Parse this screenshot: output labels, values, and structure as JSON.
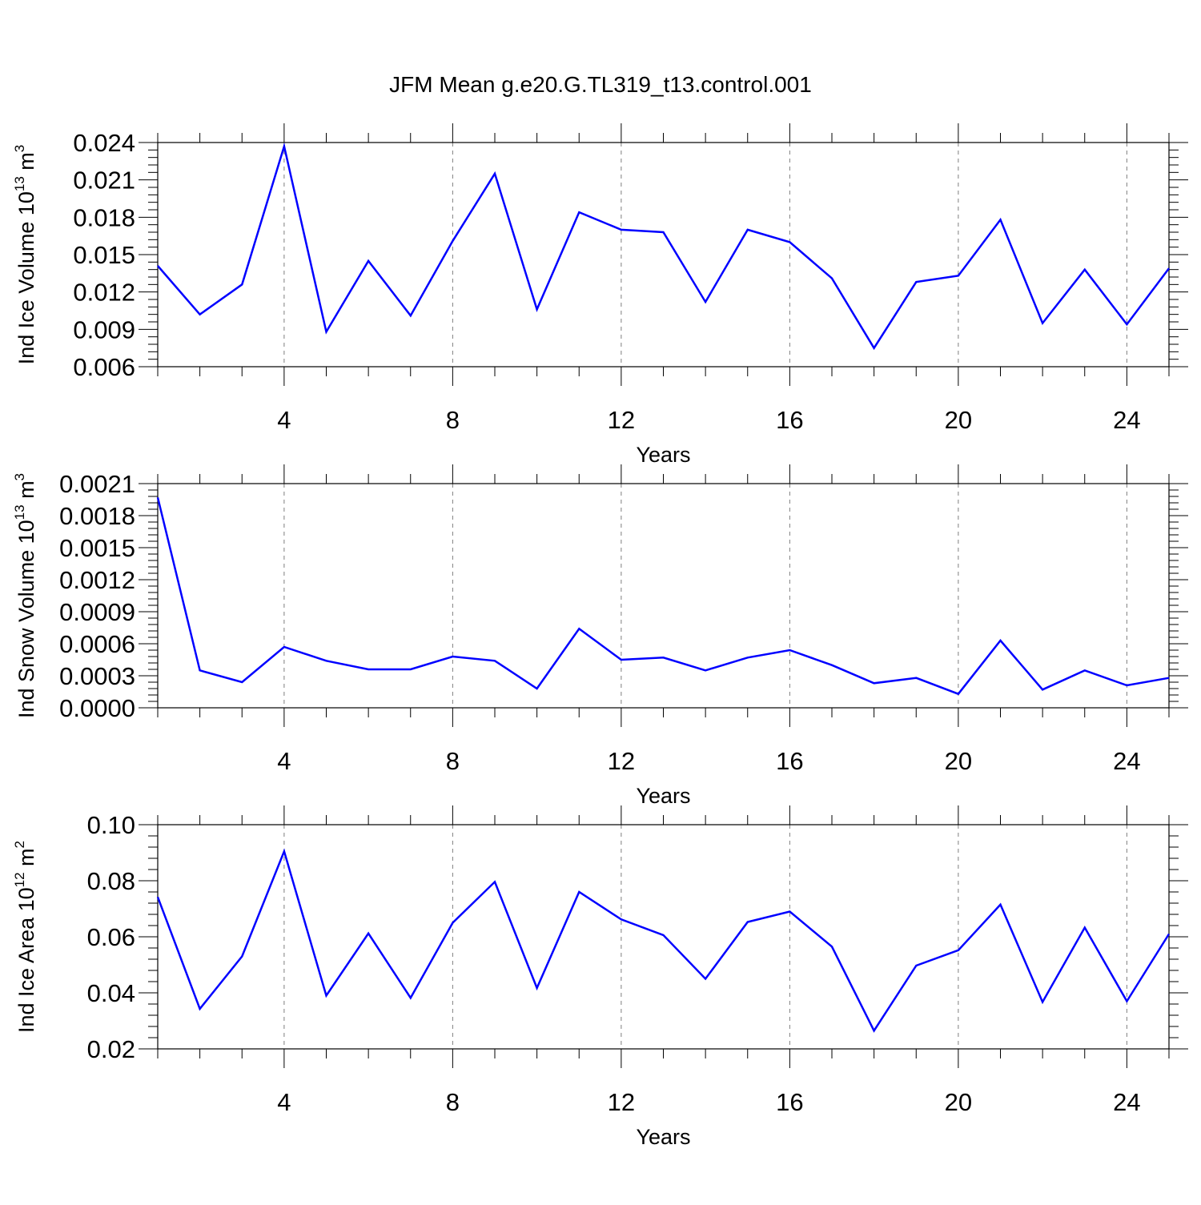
{
  "figure_title": "JFM Mean g.e20.G.TL319_t13.control.001",
  "colors": {
    "line": "#0000ff",
    "axis": "#000000",
    "grid": "#7f7f7f"
  },
  "chart_data": [
    {
      "type": "line",
      "title": "JFM Mean g.e20.G.TL319_t13.control.001",
      "xlabel": "Years",
      "ylabel_text": "Ind Ice Volume 10",
      "ylabel_exponent": "13",
      "ylabel_unit": "m",
      "ylabel_unit_exponent": "3",
      "xlim": [
        1,
        25
      ],
      "ylim": [
        0.006,
        0.024
      ],
      "xticks": [
        4,
        8,
        12,
        16,
        20,
        24
      ],
      "yticks": [
        "0.006",
        "0.009",
        "0.012",
        "0.015",
        "0.018",
        "0.021",
        "0.024"
      ],
      "grid": "vertical dashed at major x ticks",
      "series": [
        {
          "x": [
            1,
            2,
            3,
            4,
            5,
            6,
            7,
            8,
            9,
            10,
            11,
            12,
            13,
            14,
            15,
            16,
            17,
            18,
            19,
            20,
            21,
            22,
            23,
            24,
            25
          ],
          "values": [
            0.0141,
            0.0102,
            0.0126,
            0.0237,
            0.0088,
            0.0145,
            0.0101,
            0.0161,
            0.0215,
            0.0106,
            0.0184,
            0.017,
            0.0168,
            0.0112,
            0.017,
            0.016,
            0.0131,
            0.0075,
            0.0128,
            0.0133,
            0.0178,
            0.0095,
            0.0138,
            0.0094,
            0.0139
          ]
        }
      ]
    },
    {
      "type": "line",
      "xlabel": "Years",
      "ylabel_text": "Ind Snow Volume 10",
      "ylabel_exponent": "13",
      "ylabel_unit": "m",
      "ylabel_unit_exponent": "3",
      "xlim": [
        1,
        25
      ],
      "ylim": [
        0.0,
        0.0021
      ],
      "xticks": [
        4,
        8,
        12,
        16,
        20,
        24
      ],
      "yticks": [
        "0.0000",
        "0.0003",
        "0.0006",
        "0.0009",
        "0.0012",
        "0.0015",
        "0.0018",
        "0.0021"
      ],
      "grid": "vertical dashed at major x ticks",
      "series": [
        {
          "x": [
            1,
            2,
            3,
            4,
            5,
            6,
            7,
            8,
            9,
            10,
            11,
            12,
            13,
            14,
            15,
            16,
            17,
            18,
            19,
            20,
            21,
            22,
            23,
            24,
            25
          ],
          "values": [
            0.00197,
            0.00035,
            0.00024,
            0.00057,
            0.00044,
            0.00036,
            0.00036,
            0.00048,
            0.00044,
            0.00018,
            0.00074,
            0.00045,
            0.00047,
            0.00035,
            0.00047,
            0.00054,
            0.0004,
            0.00023,
            0.00028,
            0.00013,
            0.00063,
            0.00017,
            0.00035,
            0.00021,
            0.00028
          ]
        }
      ]
    },
    {
      "type": "line",
      "xlabel": "Years",
      "ylabel_text": "Ind Ice Area 10",
      "ylabel_exponent": "12",
      "ylabel_unit": "m",
      "ylabel_unit_exponent": "2",
      "xlim": [
        1,
        25
      ],
      "ylim": [
        0.02,
        0.1
      ],
      "xticks": [
        4,
        8,
        12,
        16,
        20,
        24
      ],
      "yticks": [
        "0.02",
        "0.04",
        "0.06",
        "0.08",
        "0.10"
      ],
      "grid": "vertical dashed at major x ticks",
      "series": [
        {
          "x": [
            1,
            2,
            3,
            4,
            5,
            6,
            7,
            8,
            9,
            10,
            11,
            12,
            13,
            14,
            15,
            16,
            17,
            18,
            19,
            20,
            21,
            22,
            23,
            24,
            25
          ],
          "values": [
            0.0742,
            0.0343,
            0.053,
            0.0905,
            0.039,
            0.0612,
            0.0382,
            0.065,
            0.0796,
            0.0417,
            0.076,
            0.0662,
            0.0606,
            0.045,
            0.0653,
            0.069,
            0.0565,
            0.0265,
            0.0497,
            0.0552,
            0.0715,
            0.0367,
            0.0633,
            0.037,
            0.061
          ]
        }
      ]
    }
  ]
}
